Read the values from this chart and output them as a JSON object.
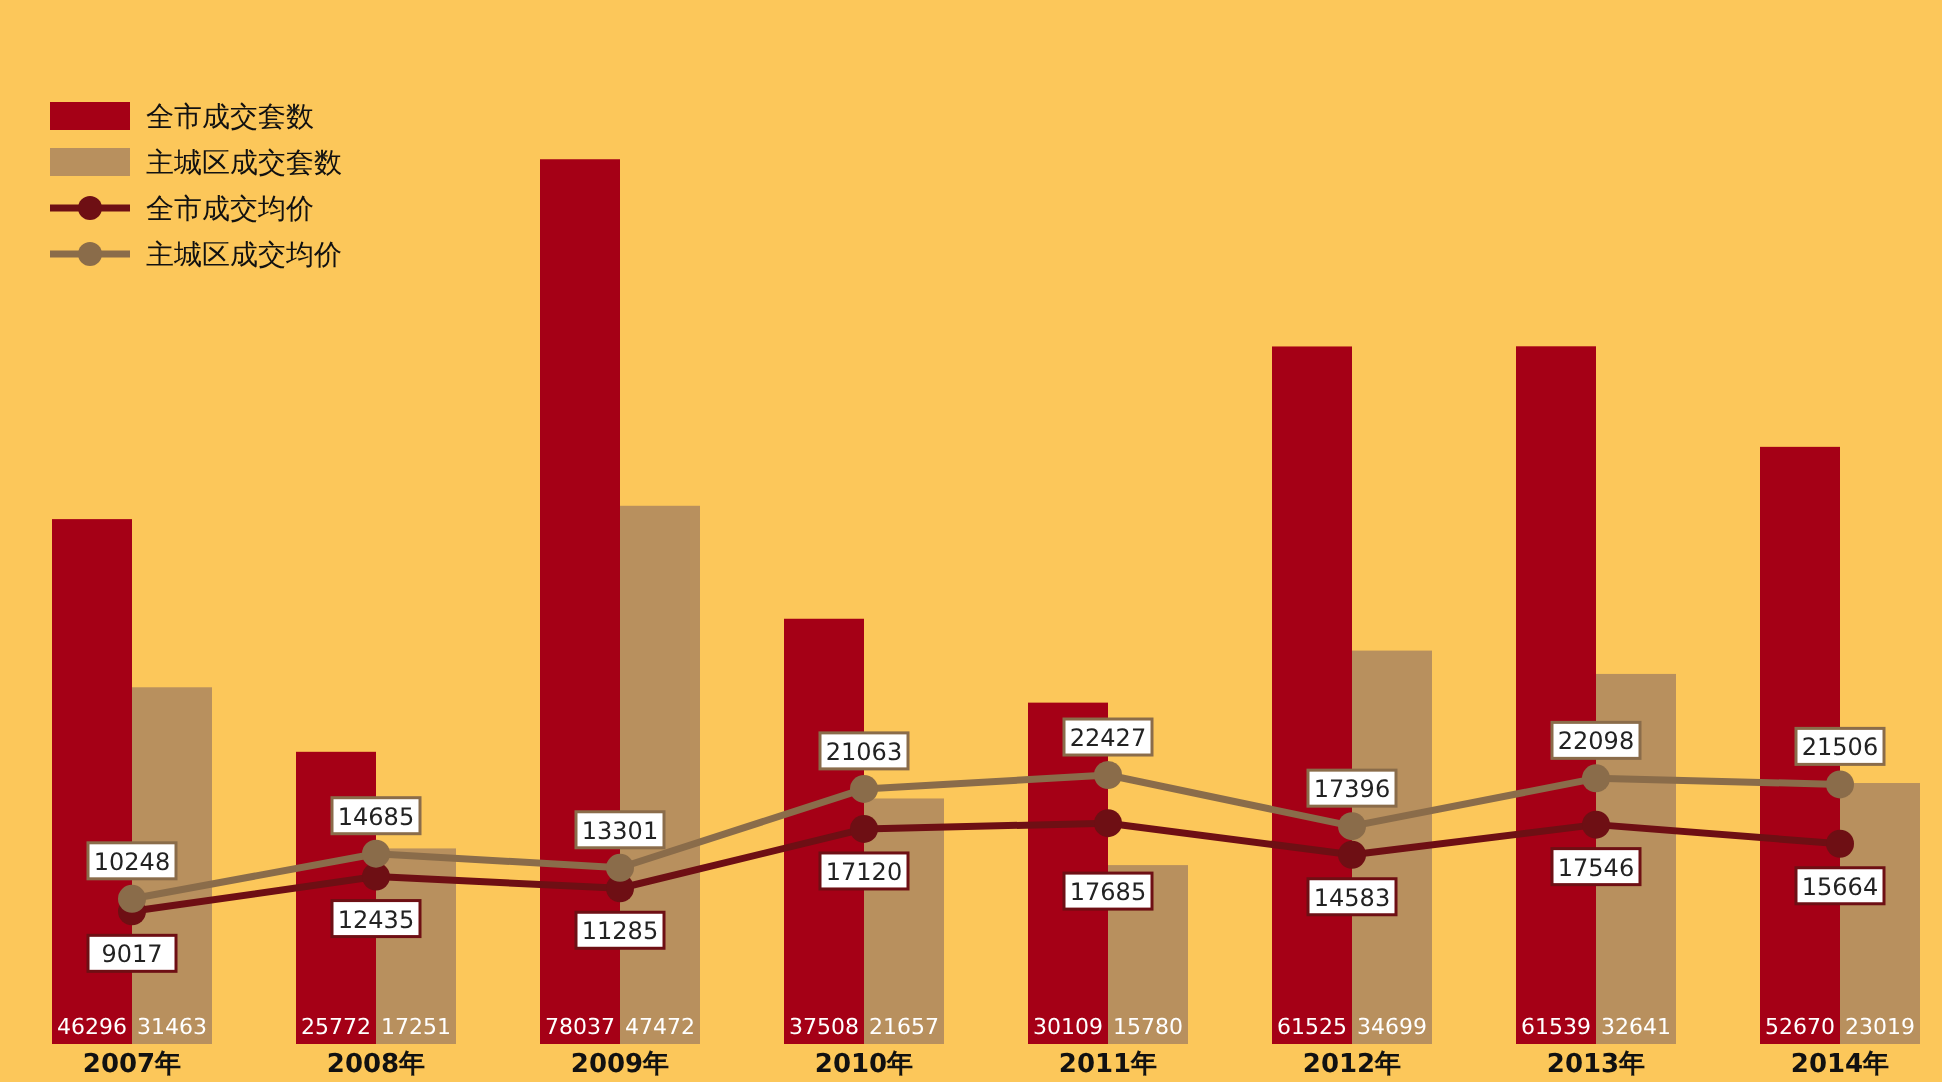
{
  "chart_data": {
    "type": "bar",
    "categories": [
      "2007年",
      "2008年",
      "2009年",
      "2010年",
      "2011年",
      "2012年",
      "2013年",
      "2014年"
    ],
    "series": [
      {
        "name": "全市成交套数",
        "color": "#a50016",
        "values": [
          46296,
          25772,
          78037,
          37508,
          30109,
          61525,
          61539,
          52670
        ]
      },
      {
        "name": "主城区成交套数",
        "color": "#b8905e",
        "values": [
          31463,
          17251,
          47472,
          21657,
          15780,
          34699,
          32641,
          23019
        ]
      },
      {
        "name": "全市成交均价",
        "type": "line",
        "axis": "y2",
        "color": "#6e0f14",
        "values": [
          9017,
          12435,
          11285,
          17120,
          17685,
          14583,
          17546,
          15664
        ]
      },
      {
        "name": "主城区成交均价",
        "type": "line",
        "axis": "y2",
        "color": "#8a6c4a",
        "values": [
          10248,
          14685,
          13301,
          21063,
          22427,
          17396,
          22098,
          21506
        ]
      }
    ],
    "tick_labels": "x",
    "legend": "top left",
    "data_labels": true,
    "marker": "circle"
  }
}
